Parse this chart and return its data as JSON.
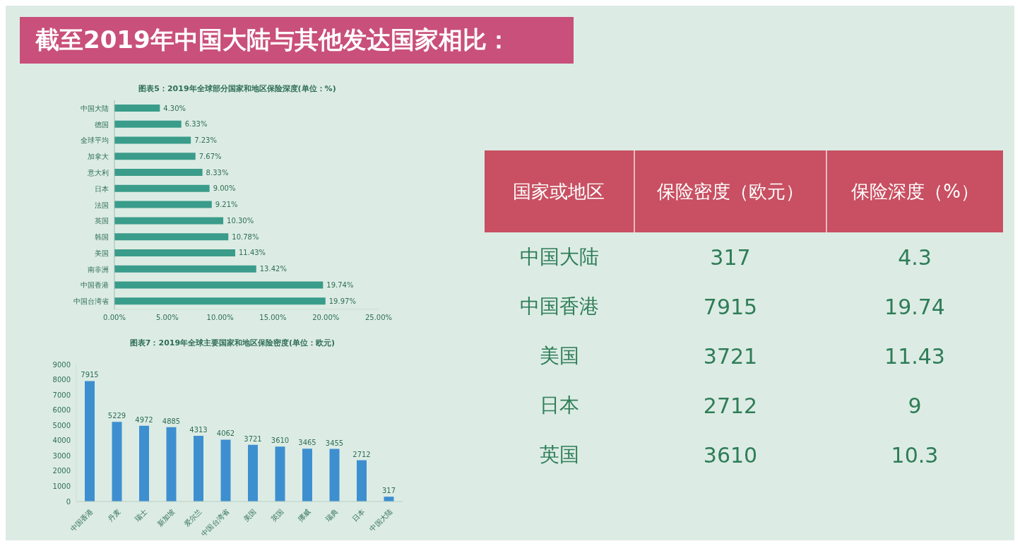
{
  "chart_data": [
    {
      "type": "other",
      "title": "截至2019年中国大陆与其他发达国家相比："
    },
    {
      "type": "bar",
      "orientation": "horizontal",
      "title": "图表5：2019年全球部分国家和地区保险深度(单位：%)",
      "categories": [
        "中国大陆",
        "德国",
        "全球平均",
        "加拿大",
        "意大利",
        "日本",
        "法国",
        "英国",
        "韩国",
        "美国",
        "南非洲",
        "中国香港",
        "中国台湾省"
      ],
      "values": [
        4.3,
        6.33,
        7.23,
        7.67,
        8.33,
        9.0,
        9.21,
        10.3,
        10.78,
        11.43,
        13.42,
        19.74,
        19.97
      ],
      "value_labels": [
        "4.30%",
        "6.33%",
        "7.23%",
        "7.67%",
        "8.33%",
        "9.00%",
        "9.21%",
        "10.30%",
        "10.78%",
        "11.43%",
        "13.42%",
        "19.74%",
        "19.97%"
      ],
      "color": "#3a9c8a",
      "xlim": [
        0,
        25
      ],
      "xticks": [
        {
          "value": 0,
          "label": "0.00%"
        },
        {
          "value": 5,
          "label": "5.00%"
        },
        {
          "value": 10,
          "label": "10.00%"
        },
        {
          "value": 15,
          "label": "15.00%"
        },
        {
          "value": 20,
          "label": "20.00%"
        },
        {
          "value": 25,
          "label": "25.00%"
        }
      ]
    },
    {
      "type": "bar",
      "title": "图表7：2019年全球主要国家和地区保险密度(单位：欧元)",
      "categories": [
        "中国香港",
        "丹麦",
        "瑞士",
        "新加坡",
        "爱尔兰",
        "中国台湾省",
        "美国",
        "英国",
        "挪威",
        "瑞典",
        "日本",
        "中国大陆"
      ],
      "values": [
        7915,
        5229,
        4972,
        4885,
        4313,
        4062,
        3721,
        3610,
        3465,
        3455,
        2712,
        317
      ],
      "data_labels": true,
      "color": "#3e8fd0",
      "ylim": [
        0,
        9000
      ],
      "yticks": [
        0,
        1000,
        2000,
        3000,
        4000,
        5000,
        6000,
        7000,
        8000,
        9000
      ]
    },
    {
      "type": "other",
      "xlabel": "国家或地区",
      "data_labels": true,
      "categories": [
        "中国大陆",
        "中国香港",
        "美国",
        "日本",
        "英国"
      ],
      "series": [
        {
          "name": "保险密度（欧元）",
          "values": [
            317,
            7915,
            3721,
            2712,
            3610
          ]
        },
        {
          "name": "保险深度（%）",
          "values": [
            4.3,
            19.74,
            11.43,
            9,
            10.3
          ]
        }
      ]
    }
  ]
}
